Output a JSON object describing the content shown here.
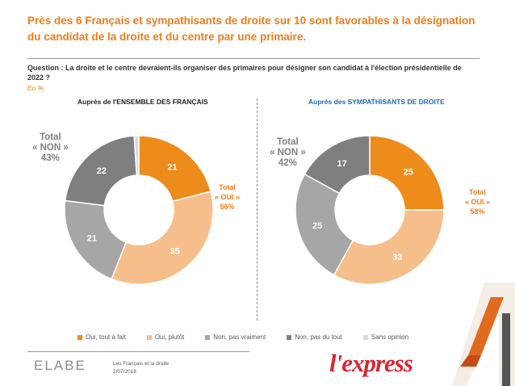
{
  "header": {
    "title": "Près des 6 Français et sympathisants de droite sur 10 sont favorables à la désignation du candidat de la droite et du centre par une primaire.",
    "question": "Question : La droite et le centre devraient-ils organiser des primaires pour désigner son candidat à l'élection présidentielle de 2022 ?",
    "unit": "En %"
  },
  "colors": {
    "oui_tout_a_fait": "#ed8b1b",
    "oui_plutot": "#f6be8a",
    "non_pas_vraiment": "#a6a6a6",
    "non_pas_du_tout": "#7f7f7f",
    "sans_opinion": "#d9d9d9",
    "accent": "#ed7d1a",
    "blue": "#1f6bb5"
  },
  "chart_data": [
    {
      "type": "pie",
      "title": "Auprès de l'ENSEMBLE DES FRANÇAIS",
      "categories": [
        "Oui, tout à fait",
        "Oui, plutôt",
        "Non, pas vraiment",
        "Non, pas du tout",
        "Sans opinion"
      ],
      "values": [
        21,
        35,
        21,
        22,
        1
      ],
      "labels": [
        "21",
        "35",
        "21",
        "22",
        ""
      ],
      "total_non": {
        "line1": "Total",
        "line2": "« NON »",
        "value": "43%"
      },
      "total_oui": {
        "line1": "Total",
        "line2": "« OUI »",
        "value": "56%"
      }
    },
    {
      "type": "pie",
      "title": "Auprès des SYMPATHISANTS DE DROITE",
      "categories": [
        "Oui, tout à fait",
        "Oui, plutôt",
        "Non, pas vraiment",
        "Non, pas du tout",
        "Sans opinion"
      ],
      "values": [
        25,
        33,
        25,
        17,
        0
      ],
      "labels": [
        "25",
        "33",
        "25",
        "17",
        ""
      ],
      "total_non": {
        "line1": "Total",
        "line2": "« NON »",
        "value": "42%"
      },
      "total_oui": {
        "line1": "Total",
        "line2": "« OUI »",
        "value": "58%"
      }
    }
  ],
  "legend": [
    {
      "label": "Oui, tout à fait",
      "color": "#ed8b1b"
    },
    {
      "label": "Oui, plutôt",
      "color": "#f6be8a"
    },
    {
      "label": "Non, pas vraiment",
      "color": "#a6a6a6"
    },
    {
      "label": "Non, pas du tout",
      "color": "#7f7f7f"
    },
    {
      "label": "Sans opinion",
      "color": "#d9d9d9"
    }
  ],
  "footer": {
    "brand_left": "ELABE",
    "study": "Les Français et la droite",
    "date": "2/07/2018",
    "brand_right": "l'express"
  }
}
